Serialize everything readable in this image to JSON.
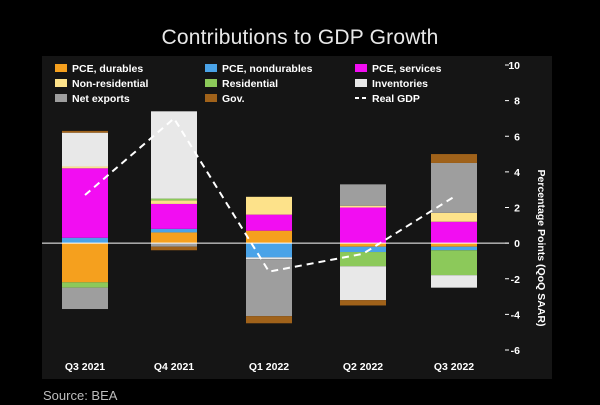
{
  "chart_data": {
    "type": "bar",
    "stacked": true,
    "title": "Contributions to GDP Growth",
    "ylabel": "Percentage Points (QoQ SAAR)",
    "xlabel": "",
    "ylim": [
      -6,
      10
    ],
    "yticks": [
      10,
      8,
      6,
      4,
      2,
      0,
      -2,
      -4,
      -6
    ],
    "categories": [
      "Q3 2021",
      "Q4 2021",
      "Q1 2022",
      "Q2 2022",
      "Q3 2022"
    ],
    "series": [
      {
        "key": "pce_durables",
        "name": "PCE, durables",
        "color": "#f5a01e",
        "values": [
          -2.2,
          0.6,
          0.7,
          -0.2,
          -0.2
        ]
      },
      {
        "key": "pce_nondurables",
        "name": "PCE, nondurables",
        "color": "#4aa3e8",
        "values": [
          0.3,
          0.2,
          -0.8,
          -0.3,
          -0.2
        ]
      },
      {
        "key": "pce_services",
        "name": "PCE, services",
        "color": "#f20df2",
        "values": [
          3.9,
          1.4,
          0.9,
          2.0,
          1.2
        ]
      },
      {
        "key": "non_residential",
        "name": "Non-residential",
        "color": "#fde28a",
        "values": [
          0.1,
          0.2,
          1.0,
          0.1,
          0.5
        ]
      },
      {
        "key": "residential",
        "name": "Residential",
        "color": "#8cc95a",
        "values": [
          -0.3,
          0.1,
          0.0,
          -0.8,
          -1.4
        ]
      },
      {
        "key": "inventories",
        "name": "Inventories",
        "color": "#e8e8e8",
        "values": [
          1.9,
          4.9,
          -0.1,
          -1.9,
          -0.7
        ]
      },
      {
        "key": "net_exports",
        "name": "Net exports",
        "color": "#9e9e9e",
        "values": [
          -1.2,
          -0.2,
          -3.2,
          1.2,
          2.8
        ]
      },
      {
        "key": "gov",
        "name": "Gov.",
        "color": "#a0621a",
        "values": [
          0.1,
          -0.2,
          -0.4,
          -0.3,
          0.5
        ]
      }
    ],
    "line": {
      "name": "Real GDP",
      "color": "#ffffff",
      "style": "dashed",
      "values": [
        2.7,
        7.0,
        -1.6,
        -0.6,
        2.6
      ]
    }
  },
  "source": "Source: BEA"
}
